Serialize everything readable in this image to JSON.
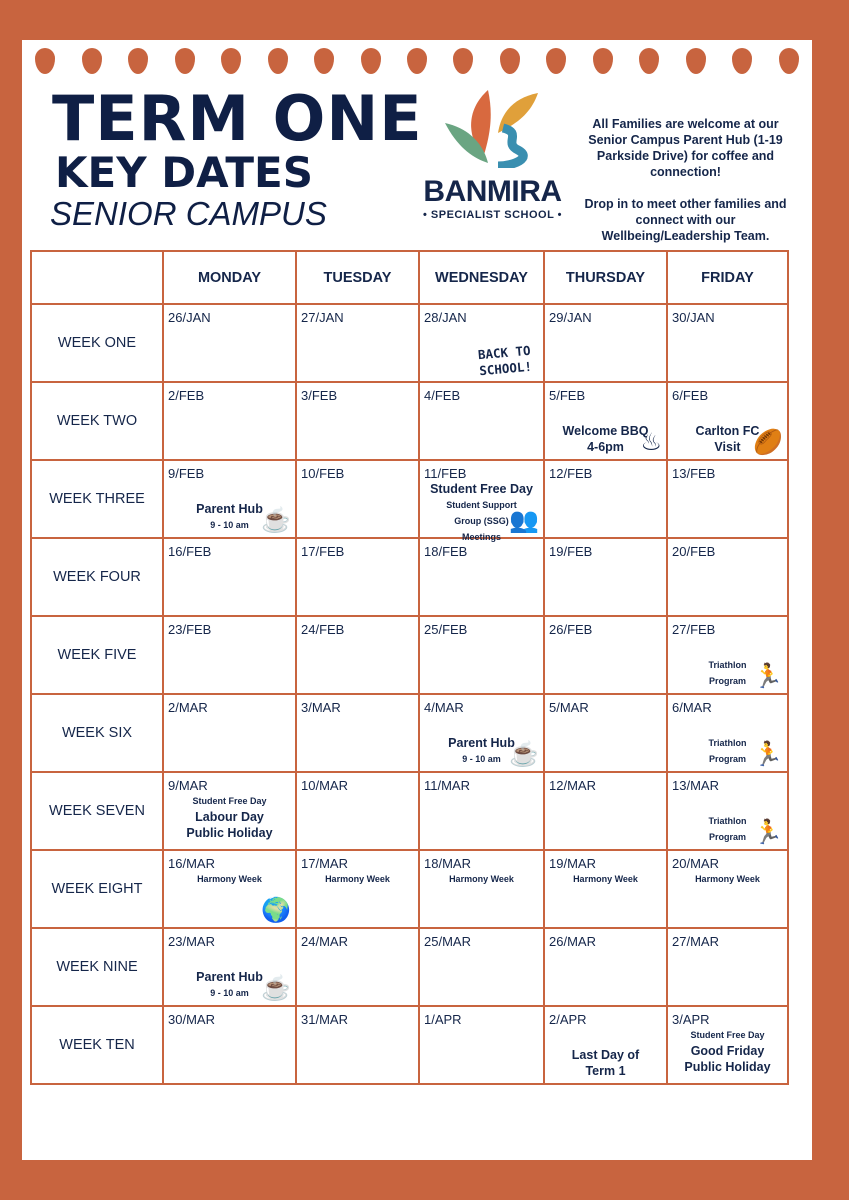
{
  "header": {
    "title_line1": "TERM ONE",
    "title_line2": "KEY DATES",
    "title_line3": "SENIOR CAMPUS"
  },
  "logo": {
    "name": "BANMIRA",
    "subtitle": "• SPECIALIST SCHOOL •"
  },
  "info": {
    "paragraph1": "All Families are welcome at our Senior Campus Parent Hub (1-19 Parkside Drive) for coffee and connection!",
    "paragraph2": "Drop in to meet other families and connect with our Wellbeing/Leadership Team."
  },
  "colors": {
    "accent": "#c8643f",
    "text": "#15264a"
  },
  "table": {
    "columns": [
      "",
      "MONDAY",
      "TUESDAY",
      "WEDNESDAY",
      "THURSDAY",
      "FRIDAY"
    ],
    "rows": [
      {
        "week": "WEEK ONE",
        "cells": [
          {
            "date": "26/JAN"
          },
          {
            "date": "27/JAN"
          },
          {
            "date": "28/JAN",
            "events": [
              {
                "text": "BACK TO SCHOOL!"
              }
            ],
            "icon": "back-to-school-sticker"
          },
          {
            "date": "29/JAN"
          },
          {
            "date": "30/JAN"
          }
        ]
      },
      {
        "week": "WEEK TWO",
        "cells": [
          {
            "date": "2/FEB"
          },
          {
            "date": "3/FEB"
          },
          {
            "date": "4/FEB"
          },
          {
            "date": "5/FEB",
            "events": [
              {
                "text": "Welcome BBQ"
              },
              {
                "text": "4-6pm"
              }
            ],
            "icon": "bbq-icon"
          },
          {
            "date": "6/FEB",
            "events": [
              {
                "text": "Carlton FC"
              },
              {
                "text": "Visit"
              }
            ],
            "icon": "football-icon"
          }
        ]
      },
      {
        "week": "WEEK THREE",
        "cells": [
          {
            "date": "9/FEB",
            "events": [
              {
                "text": "Parent Hub"
              },
              {
                "text": "9 - 10 am",
                "small": true
              }
            ],
            "icon": "coffee-icon"
          },
          {
            "date": "10/FEB"
          },
          {
            "date": "11/FEB",
            "top": true,
            "events": [
              {
                "text": "Student Free Day"
              },
              {
                "text": "Student Support",
                "small": true
              },
              {
                "text": "Group (SSG)",
                "small": true
              },
              {
                "text": "Meetings",
                "small": true
              }
            ],
            "icon": "meeting-icon"
          },
          {
            "date": "12/FEB"
          },
          {
            "date": "13/FEB"
          }
        ]
      },
      {
        "week": "WEEK FOUR",
        "cells": [
          {
            "date": "16/FEB"
          },
          {
            "date": "17/FEB"
          },
          {
            "date": "18/FEB"
          },
          {
            "date": "19/FEB"
          },
          {
            "date": "20/FEB"
          }
        ]
      },
      {
        "week": "WEEK FIVE",
        "cells": [
          {
            "date": "23/FEB"
          },
          {
            "date": "24/FEB"
          },
          {
            "date": "25/FEB"
          },
          {
            "date": "26/FEB"
          },
          {
            "date": "27/FEB",
            "events": [
              {
                "text": "Triathlon",
                "small": true
              },
              {
                "text": "Program",
                "small": true
              }
            ],
            "icon": "runner-icon"
          }
        ]
      },
      {
        "week": "WEEK SIX",
        "cells": [
          {
            "date": "2/MAR"
          },
          {
            "date": "3/MAR"
          },
          {
            "date": "4/MAR",
            "events": [
              {
                "text": "Parent Hub"
              },
              {
                "text": "9 - 10 am",
                "small": true
              }
            ],
            "icon": "coffee-icon"
          },
          {
            "date": "5/MAR"
          },
          {
            "date": "6/MAR",
            "events": [
              {
                "text": "Triathlon",
                "small": true
              },
              {
                "text": "Program",
                "small": true
              }
            ],
            "icon": "runner-icon"
          }
        ]
      },
      {
        "week": "WEEK SEVEN",
        "cells": [
          {
            "date": "9/MAR",
            "top": true,
            "events": [
              {
                "text": "Student Free Day",
                "small": true
              },
              {
                "text": "Labour Day"
              },
              {
                "text": "Public Holiday"
              }
            ]
          },
          {
            "date": "10/MAR"
          },
          {
            "date": "11/MAR"
          },
          {
            "date": "12/MAR"
          },
          {
            "date": "13/MAR",
            "events": [
              {
                "text": "Triathlon",
                "small": true
              },
              {
                "text": "Program",
                "small": true
              }
            ],
            "icon": "runner-icon"
          }
        ]
      },
      {
        "week": "WEEK EIGHT",
        "cells": [
          {
            "date": "16/MAR",
            "top": true,
            "events": [
              {
                "text": "Harmony Week",
                "small": true
              }
            ],
            "icon": "globe-hands-icon"
          },
          {
            "date": "17/MAR",
            "top": true,
            "events": [
              {
                "text": "Harmony Week",
                "small": true
              }
            ]
          },
          {
            "date": "18/MAR",
            "top": true,
            "events": [
              {
                "text": "Harmony Week",
                "small": true
              }
            ]
          },
          {
            "date": "19/MAR",
            "top": true,
            "events": [
              {
                "text": "Harmony Week",
                "small": true
              }
            ]
          },
          {
            "date": "20/MAR",
            "top": true,
            "events": [
              {
                "text": "Harmony Week",
                "small": true
              }
            ]
          }
        ]
      },
      {
        "week": "WEEK NINE",
        "cells": [
          {
            "date": "23/MAR",
            "events": [
              {
                "text": "Parent Hub"
              },
              {
                "text": "9 - 10 am",
                "small": true
              }
            ],
            "icon": "coffee-icon"
          },
          {
            "date": "24/MAR"
          },
          {
            "date": "25/MAR"
          },
          {
            "date": "26/MAR"
          },
          {
            "date": "27/MAR"
          }
        ]
      },
      {
        "week": "WEEK TEN",
        "cells": [
          {
            "date": "30/MAR"
          },
          {
            "date": "31/MAR"
          },
          {
            "date": "1/APR"
          },
          {
            "date": "2/APR",
            "events": [
              {
                "text": "Last Day of"
              },
              {
                "text": "Term 1"
              }
            ]
          },
          {
            "date": "3/APR",
            "top": true,
            "events": [
              {
                "text": "Student Free Day",
                "small": true
              },
              {
                "text": "Good Friday"
              },
              {
                "text": "Public Holiday"
              }
            ]
          }
        ]
      }
    ]
  }
}
